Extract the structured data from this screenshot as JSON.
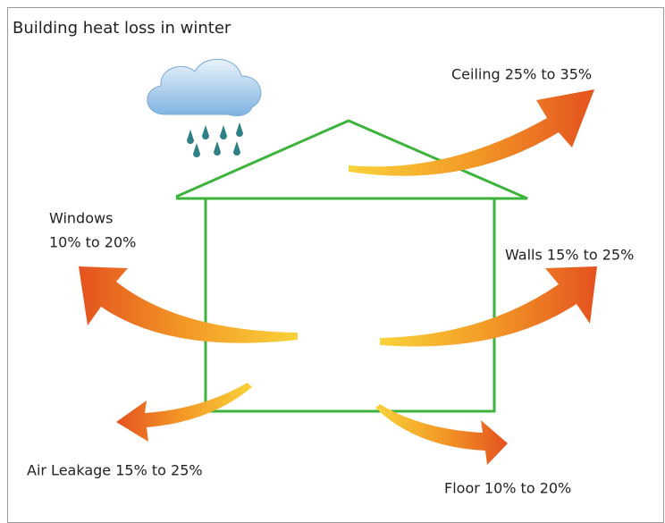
{
  "title": "Building heat loss in winter",
  "labels": {
    "ceiling": "Ceiling 25% to 35%",
    "windows": [
      "Windows",
      "10% to 20%"
    ],
    "walls": "Walls 15% to 25%",
    "air_leakage": "Air Leakage 15% to 25%",
    "floor": "Floor 10% to 20%"
  }
}
